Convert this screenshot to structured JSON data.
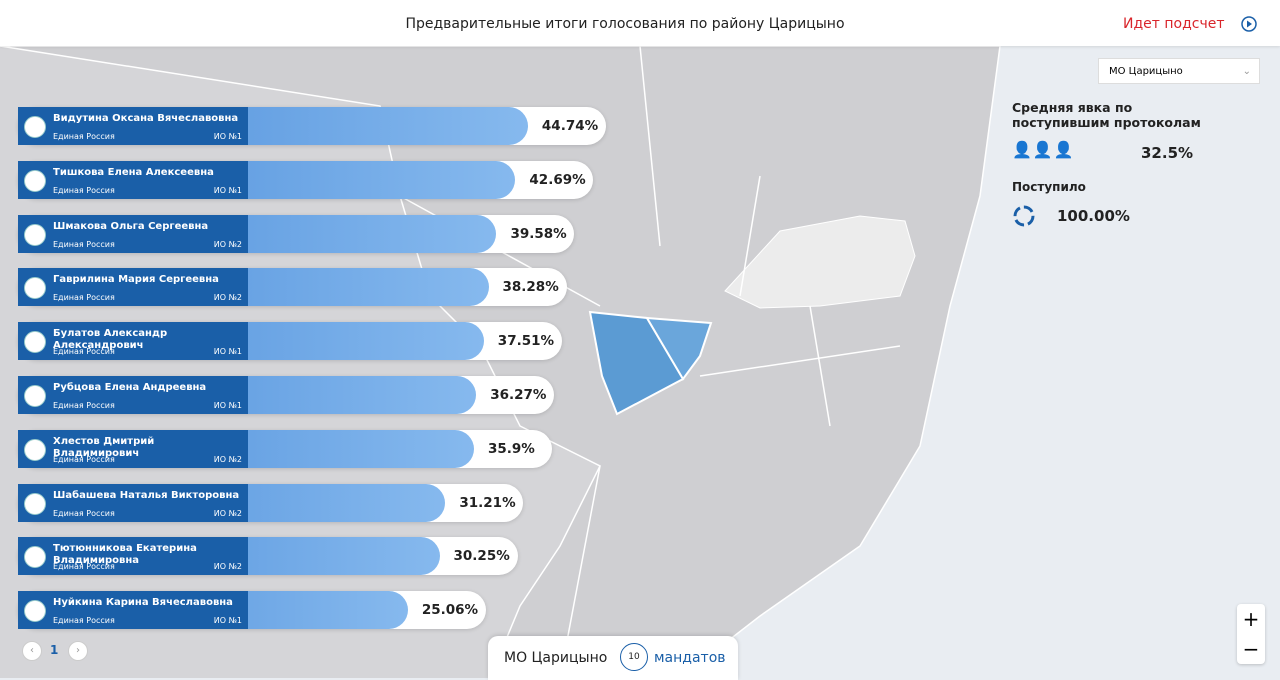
{
  "header": {
    "title": "Предварительные итоги голосования по району Царицыно",
    "status": "Идет подсчет"
  },
  "district_select": "МО Царицыно",
  "turnout": {
    "label": "Средняя явка по поступившим протоколам",
    "value": "32.5%"
  },
  "received": {
    "label": "Поступило",
    "value": "100.00%"
  },
  "candidates": [
    {
      "name": "Видутина Оксана Вячеславовна",
      "party": "Единая Россия",
      "district": "ИО №1",
      "value": 44.74,
      "value_label": "44.74%"
    },
    {
      "name": "Тишкова Елена Алексеевна",
      "party": "Единая Россия",
      "district": "ИО №1",
      "value": 42.69,
      "value_label": "42.69%"
    },
    {
      "name": "Шмакова Ольга Сергеевна",
      "party": "Единая Россия",
      "district": "ИО №2",
      "value": 39.58,
      "value_label": "39.58%"
    },
    {
      "name": "Гаврилина Мария Сергеевна",
      "party": "Единая Россия",
      "district": "ИО №2",
      "value": 38.28,
      "value_label": "38.28%"
    },
    {
      "name": "Булатов Александр Александрович",
      "party": "Единая Россия",
      "district": "ИО №1",
      "value": 37.51,
      "value_label": "37.51%"
    },
    {
      "name": "Рубцова Елена Андреевна",
      "party": "Единая Россия",
      "district": "ИО №1",
      "value": 36.27,
      "value_label": "36.27%"
    },
    {
      "name": "Хлестов Дмитрий Владимирович",
      "party": "Единая Россия",
      "district": "ИО №2",
      "value": 35.9,
      "value_label": "35.9%"
    },
    {
      "name": "Шабашева Наталья Викторовна",
      "party": "Единая Россия",
      "district": "ИО №2",
      "value": 31.21,
      "value_label": "31.21%"
    },
    {
      "name": "Тютюнникова Екатерина Владимировна",
      "party": "Единая Россия",
      "district": "ИО №2",
      "value": 30.25,
      "value_label": "30.25%"
    },
    {
      "name": "Нуйкина Карина Вячеславовна",
      "party": "Единая Россия",
      "district": "ИО №1",
      "value": 25.06,
      "value_label": "25.06%"
    }
  ],
  "pagination": {
    "page": "1"
  },
  "footer": {
    "district": "МО Царицыно",
    "mandates": "10",
    "mandates_label": "мандатов"
  }
}
